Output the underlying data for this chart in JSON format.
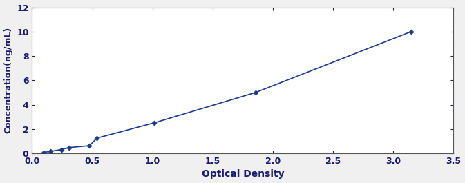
{
  "x": [
    0.097,
    0.151,
    0.243,
    0.305,
    0.476,
    0.538,
    1.012,
    1.856,
    3.147
  ],
  "y": [
    0.078,
    0.156,
    0.313,
    0.469,
    0.625,
    1.25,
    2.5,
    5.0,
    10.0
  ],
  "line_color": "#1a3a8a",
  "marker": "D",
  "marker_size": 3.5,
  "marker_color": "#1a3a8a",
  "xlabel": "Optical Density",
  "ylabel": "Concentration(ng/mL)",
  "xlim": [
    0,
    3.5
  ],
  "ylim": [
    0,
    12
  ],
  "xticks": [
    0.0,
    0.5,
    1.0,
    1.5,
    2.0,
    2.5,
    3.0,
    3.5
  ],
  "yticks": [
    0,
    2,
    4,
    6,
    8,
    10,
    12
  ],
  "xlabel_fontsize": 10,
  "ylabel_fontsize": 9,
  "tick_fontsize": 9,
  "line_width": 1.2,
  "background_color": "#f0f0f0",
  "plot_bg_color": "#ffffff",
  "label_color": "#1a1a6e"
}
